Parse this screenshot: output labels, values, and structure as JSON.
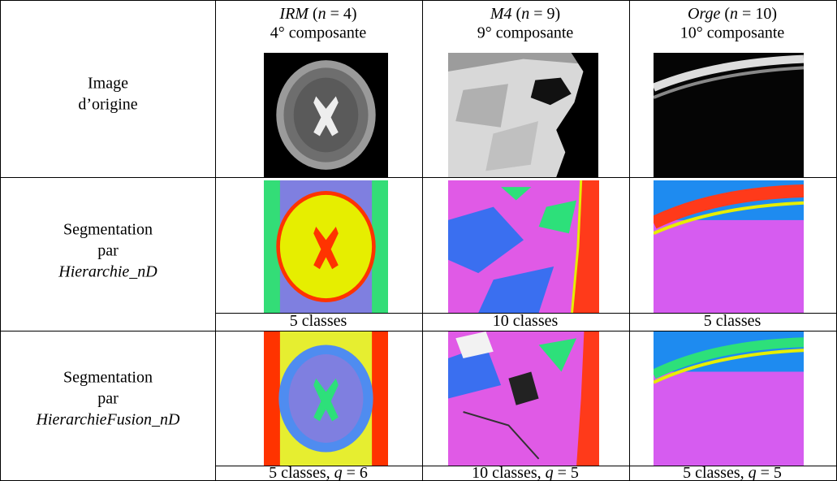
{
  "table": {
    "header": [
      [
        {
          "i": "IRM"
        },
        " (",
        {
          "i": "n"
        },
        " = 4)"
      ],
      [
        {
          "i": "M4"
        },
        " (",
        {
          "i": "n"
        },
        " = 9)"
      ],
      [
        {
          "i": "Orge"
        },
        " (",
        {
          "i": "n"
        },
        " = 10)"
      ]
    ],
    "subheader": [
      "4° composante",
      "9° composante",
      "10° composante"
    ],
    "rows": [
      {
        "label": [
          "Image",
          "d’origine"
        ]
      },
      {
        "label": [
          "Segmentation",
          "par",
          {
            "i": "Hierarchie_nD"
          }
        ],
        "captions": [
          [
            "5 classes"
          ],
          [
            "10 classes"
          ],
          [
            "5 classes"
          ]
        ]
      },
      {
        "label": [
          "Segmentation",
          "par",
          {
            "i": "HierarchieFusion_nD"
          }
        ],
        "captions": [
          [
            "5 classes, ",
            {
              "i": "q"
            },
            " = 6"
          ],
          [
            "10 classes, ",
            {
              "i": "q"
            },
            " = 5"
          ],
          [
            "5 classes, ",
            {
              "i": "q"
            },
            " = 5"
          ]
        ]
      }
    ]
  }
}
